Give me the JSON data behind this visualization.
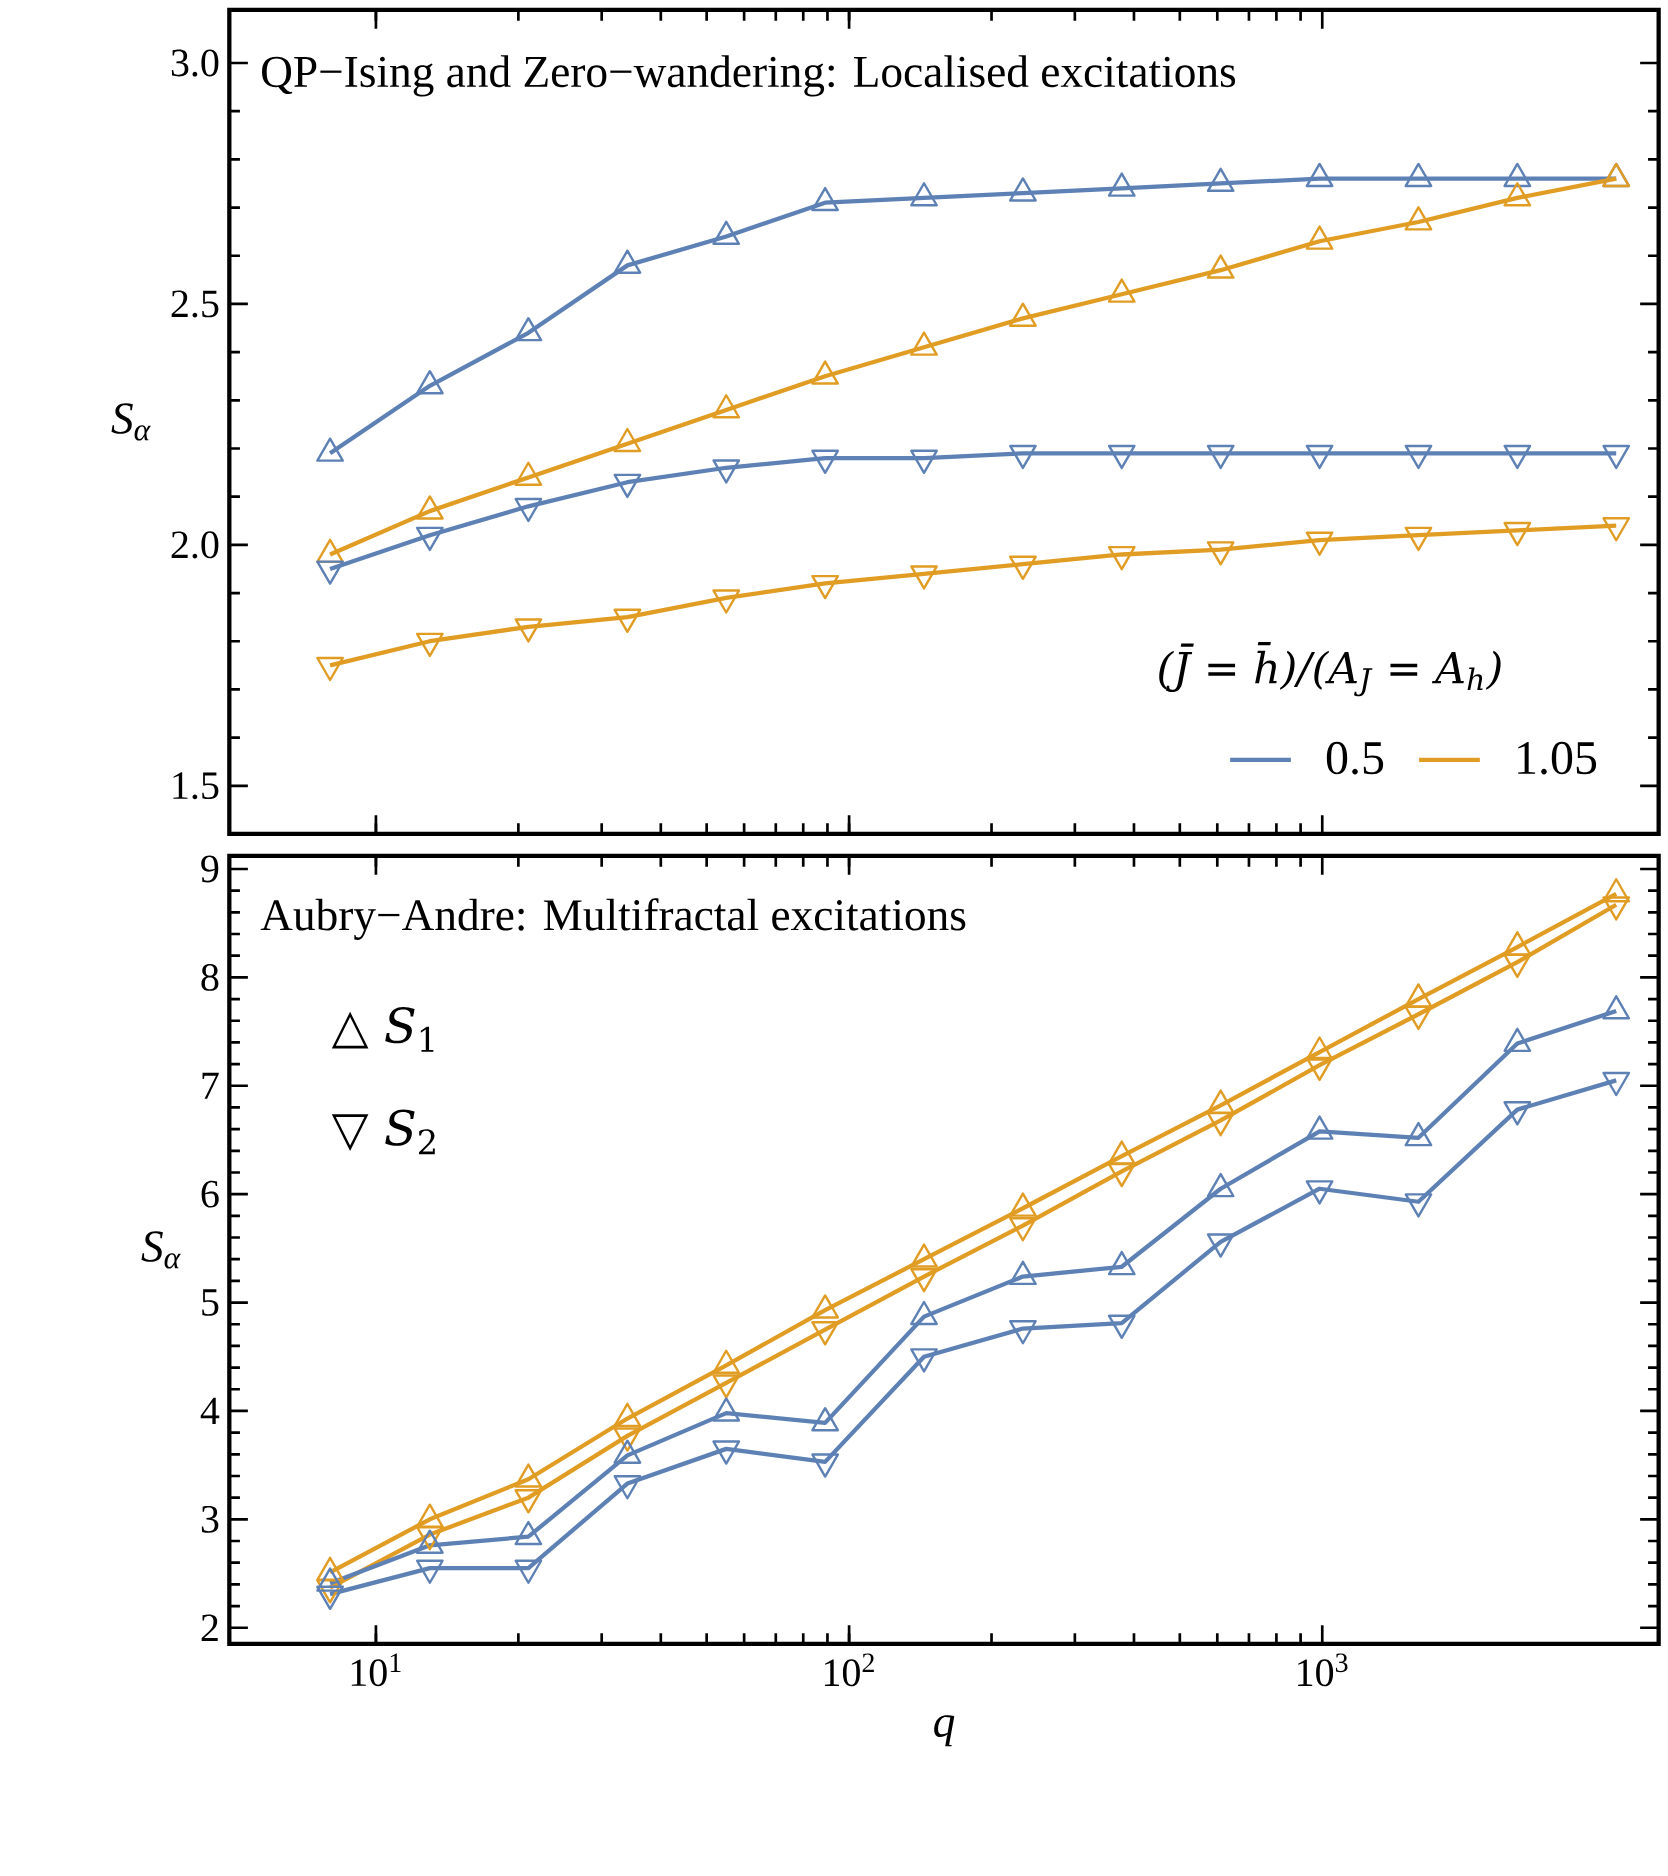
{
  "chart_data": [
    {
      "type": "line",
      "title": "QP−Ising and Zero−wandering: Localised excitations",
      "ylabel": "S$_{α}$",
      "legend_title": "(J̄ = h̄)/(A$_{J}$ = A$_{h}$)",
      "legend": "bottom right",
      "log": "x",
      "tick_labels": "y",
      "x": [
        8,
        13,
        21,
        34,
        55,
        89,
        144,
        233,
        377,
        610,
        987,
        1597,
        2584,
        4181
      ],
      "xlim": [
        4.9,
        5140
      ],
      "xticks": [
        {
          "value": 10,
          "label": null
        },
        {
          "value": 100,
          "label": null
        },
        {
          "value": 1000,
          "label": null
        }
      ],
      "ylim": [
        1.4,
        3.11
      ],
      "yticks": [
        1.5,
        {
          "value": 2.0,
          "label": "2.0"
        },
        2.5,
        {
          "value": 3.0,
          "label": "3.0"
        }
      ],
      "series": [
        {
          "name": "0.5",
          "color": "#5e81b5",
          "marker": "triangle",
          "values": [
            2.19,
            2.33,
            2.44,
            2.58,
            2.64,
            2.71,
            2.72,
            2.73,
            2.74,
            2.75,
            2.76,
            2.76,
            2.76,
            2.76
          ]
        },
        {
          "name": "1.05",
          "color": "#e19c24",
          "marker": "triangle",
          "values": [
            1.98,
            2.07,
            2.14,
            2.21,
            2.28,
            2.35,
            2.41,
            2.47,
            2.52,
            2.57,
            2.63,
            2.67,
            2.72,
            2.76
          ]
        },
        {
          "color": "#5e81b5",
          "marker": "triangle-down",
          "values": [
            1.95,
            2.02,
            2.08,
            2.13,
            2.16,
            2.18,
            2.18,
            2.19,
            2.19,
            2.19,
            2.19,
            2.19,
            2.19,
            2.19
          ]
        },
        {
          "color": "#e19c24",
          "marker": "triangle-down",
          "values": [
            1.75,
            1.8,
            1.83,
            1.85,
            1.89,
            1.92,
            1.94,
            1.96,
            1.98,
            1.99,
            2.01,
            2.02,
            2.03,
            2.04
          ]
        }
      ]
    },
    {
      "type": "line",
      "title": "Aubry−Andre: Multifractal excitations",
      "xlabel": "q",
      "ylabel": "S$_{α}$",
      "log": "x",
      "annotations": [
        "△   *S*$_{1}$",
        "▽   *S*$_{2}$"
      ],
      "x": [
        8,
        13,
        21,
        34,
        55,
        89,
        144,
        233,
        377,
        610,
        987,
        1597,
        2584,
        4181
      ],
      "xlim": [
        4.9,
        5140
      ],
      "xticks": [
        {
          "value": 10,
          "label": "10$^{1}$"
        },
        {
          "value": 100,
          "label": "10$^{2}$"
        },
        {
          "value": 1000,
          "label": "10$^{3}$"
        }
      ],
      "ylim": [
        1.85,
        9.12
      ],
      "yticks": [
        2,
        3,
        4,
        5,
        6,
        7,
        8,
        9
      ],
      "series": [
        {
          "color": "#e19c24",
          "marker": "triangle",
          "values": [
            2.51,
            3.0,
            3.37,
            3.93,
            4.42,
            4.93,
            5.4,
            5.87,
            6.35,
            6.82,
            7.31,
            7.8,
            8.28,
            8.77
          ]
        },
        {
          "color": "#e19c24",
          "marker": "triangle-down",
          "values": [
            2.37,
            2.86,
            3.2,
            3.77,
            4.26,
            4.75,
            5.24,
            5.71,
            6.21,
            6.68,
            7.19,
            7.66,
            8.14,
            8.67
          ]
        },
        {
          "color": "#5e81b5",
          "marker": "triangle",
          "values": [
            2.41,
            2.76,
            2.84,
            3.59,
            3.98,
            3.89,
            4.87,
            5.24,
            5.33,
            6.05,
            6.58,
            6.52,
            7.39,
            7.69
          ]
        },
        {
          "color": "#5e81b5",
          "marker": "triangle-down",
          "values": [
            2.31,
            2.55,
            2.55,
            3.33,
            3.65,
            3.53,
            4.5,
            4.76,
            4.81,
            5.56,
            6.05,
            5.93,
            6.78,
            7.05
          ]
        }
      ]
    }
  ]
}
